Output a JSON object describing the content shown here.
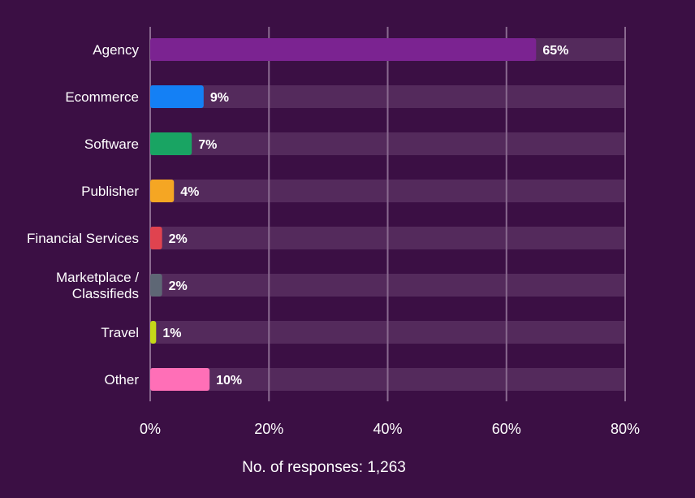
{
  "chart_data": {
    "type": "bar",
    "orientation": "horizontal",
    "categories": [
      [
        "Agency"
      ],
      [
        "Ecommerce"
      ],
      [
        "Software"
      ],
      [
        "Publisher"
      ],
      [
        "Financial Services"
      ],
      [
        "Marketplace /",
        "Classifieds"
      ],
      [
        "Travel"
      ],
      [
        "Other"
      ]
    ],
    "values": [
      65,
      9,
      7,
      4,
      2,
      2,
      1,
      10
    ],
    "value_labels": [
      "65%",
      "9%",
      "7%",
      "4%",
      "2%",
      "2%",
      "1%",
      "10%"
    ],
    "bar_colors": [
      "#7b2391",
      "#1480f5",
      "#19a463",
      "#f5a623",
      "#e0434f",
      "#5e6775",
      "#c5d818",
      "#ff6fb7"
    ],
    "xlim": [
      0,
      80
    ],
    "xticks": [
      0,
      20,
      40,
      60,
      80
    ],
    "xtick_labels": [
      "0%",
      "20%",
      "40%",
      "60%",
      "80%"
    ],
    "xlabel": "No. of responses: 1,263",
    "grid": true,
    "background_color": "#3b0f44",
    "track_color": "#542a5c",
    "grid_color": "#8a6a90"
  }
}
